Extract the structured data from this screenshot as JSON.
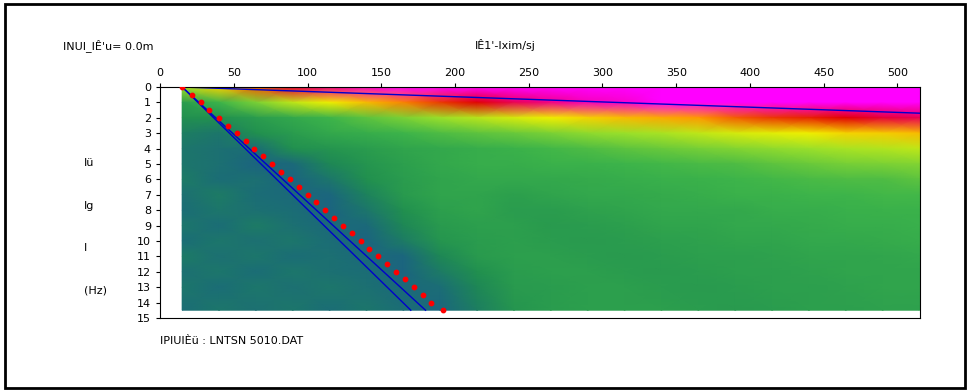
{
  "chart_data": {
    "type": "heatmap",
    "title": "INUI_IÊ'u= 0.0m",
    "x_label": "IÊ1'-Ixim/sj",
    "y_label": [
      "Iü",
      "Ig",
      "I",
      "(Hz)"
    ],
    "footer": "IPIUIÈü : LNTSN 5010.DAT",
    "xlim": [
      0,
      515
    ],
    "xticks": [
      0,
      50,
      100,
      150,
      200,
      250,
      300,
      350,
      400,
      450,
      500
    ],
    "ylim": [
      15,
      0
    ],
    "yticks": [
      0,
      1,
      2,
      3,
      4,
      5,
      6,
      7,
      8,
      9,
      10,
      11,
      12,
      13,
      14,
      15
    ],
    "grid": false,
    "zlim": [
      0,
      100
    ],
    "x": [
      15,
      40,
      65,
      90,
      115,
      140,
      165,
      190,
      215,
      240,
      265,
      290,
      315,
      340,
      365,
      390,
      415,
      440,
      465,
      490,
      515
    ],
    "y": [
      0,
      1,
      2,
      3,
      4,
      5,
      6,
      7,
      8,
      9,
      10,
      11,
      12,
      13,
      14.5
    ],
    "cells": [
      [
        60,
        75,
        85,
        92,
        95,
        98,
        100,
        100,
        100,
        100,
        100,
        100,
        100,
        100,
        100,
        100,
        100,
        100,
        100,
        100,
        100
      ],
      [
        35,
        45,
        55,
        65,
        72,
        78,
        83,
        87,
        90,
        93,
        95,
        97,
        98,
        100,
        100,
        100,
        100,
        100,
        100,
        100,
        100
      ],
      [
        30,
        30,
        35,
        40,
        45,
        50,
        55,
        60,
        64,
        68,
        72,
        75,
        78,
        80,
        82,
        85,
        87,
        88,
        90,
        92,
        93
      ],
      [
        20,
        15,
        30,
        35,
        40,
        42,
        45,
        48,
        50,
        52,
        55,
        58,
        60,
        62,
        65,
        68,
        70,
        72,
        75,
        76,
        78
      ],
      [
        15,
        12,
        10,
        30,
        32,
        35,
        38,
        40,
        42,
        44,
        46,
        48,
        50,
        52,
        54,
        56,
        58,
        60,
        62,
        63,
        65
      ],
      [
        15,
        12,
        5,
        8,
        25,
        32,
        36,
        40,
        42,
        42,
        44,
        44,
        45,
        46,
        47,
        48,
        50,
        52,
        54,
        55,
        56
      ],
      [
        18,
        10,
        12,
        5,
        15,
        30,
        35,
        38,
        40,
        40,
        40,
        41,
        42,
        43,
        44,
        45,
        46,
        47,
        48,
        48,
        50
      ],
      [
        12,
        18,
        10,
        8,
        6,
        22,
        34,
        38,
        38,
        36,
        38,
        40,
        40,
        41,
        42,
        44,
        44,
        45,
        45,
        46,
        46
      ],
      [
        10,
        15,
        12,
        10,
        5,
        15,
        30,
        36,
        38,
        35,
        35,
        37,
        38,
        40,
        40,
        40,
        42,
        42,
        43,
        44,
        44
      ],
      [
        15,
        10,
        18,
        12,
        8,
        8,
        25,
        34,
        36,
        36,
        34,
        35,
        36,
        38,
        38,
        40,
        40,
        41,
        42,
        42,
        43
      ],
      [
        10,
        15,
        12,
        15,
        10,
        5,
        18,
        32,
        35,
        36,
        35,
        34,
        35,
        36,
        37,
        38,
        38,
        40,
        40,
        41,
        42
      ],
      [
        18,
        12,
        15,
        10,
        12,
        8,
        6,
        25,
        34,
        36,
        36,
        35,
        34,
        35,
        36,
        36,
        37,
        38,
        38,
        39,
        40
      ],
      [
        12,
        15,
        10,
        15,
        12,
        10,
        5,
        18,
        30,
        35,
        36,
        36,
        35,
        34,
        35,
        36,
        36,
        37,
        38,
        38,
        38
      ],
      [
        15,
        10,
        15,
        12,
        15,
        12,
        8,
        10,
        25,
        34,
        35,
        36,
        36,
        35,
        34,
        35,
        36,
        36,
        37,
        38,
        38
      ],
      [
        10,
        15,
        12,
        15,
        10,
        15,
        10,
        6,
        20,
        32,
        35,
        36,
        36,
        36,
        35,
        34,
        35,
        36,
        36,
        37,
        37
      ]
    ],
    "series": [
      {
        "type": "line",
        "color": "#0000cc",
        "line_style": "solid",
        "x": [
          15,
          515
        ],
        "y": [
          0,
          1.7
        ]
      },
      {
        "type": "line",
        "color": "#0000cc",
        "line_style": "solid",
        "x": [
          15,
          170
        ],
        "y": [
          0,
          14.5
        ]
      },
      {
        "type": "line",
        "color": "#0000cc",
        "line_style": "solid",
        "x": [
          15,
          180
        ],
        "y": [
          0,
          14.5
        ]
      },
      {
        "type": "scatter",
        "color": "#ff0000",
        "marker": "o",
        "x": [
          15,
          22,
          28,
          33,
          40,
          46,
          52,
          58,
          64,
          70,
          76,
          82,
          88,
          94,
          100,
          106,
          112,
          118,
          124,
          130,
          136,
          142,
          148,
          154,
          160,
          166,
          172,
          178,
          184,
          192
        ],
        "y": [
          0,
          0.5,
          1,
          1.5,
          2,
          2.5,
          3,
          3.5,
          4,
          4.5,
          5,
          5.5,
          6,
          6.5,
          7,
          7.5,
          8,
          8.5,
          9,
          9.5,
          10,
          10.5,
          11,
          11.5,
          12,
          12.5,
          13,
          13.5,
          14,
          14.5
        ]
      }
    ]
  }
}
